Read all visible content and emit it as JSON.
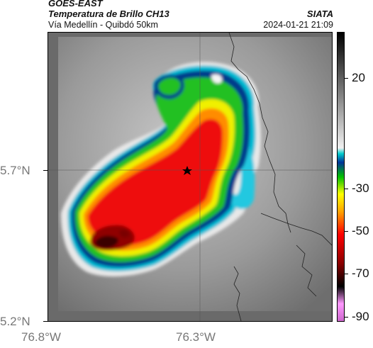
{
  "header": {
    "satellite": "GOES-EAST",
    "product": "Temperatura de Brillo CH13",
    "location": "Vía Medellín - Quibdó 50km",
    "organization": "SIATA",
    "timestamp": "2024-01-21 21:09"
  },
  "map": {
    "lat_ticks": [
      "5.7°N",
      "5.2°N"
    ],
    "lon_ticks": [
      "76.8°W",
      "76.3°W"
    ],
    "marker": "star-icon"
  },
  "colorbar": {
    "ticks": [
      "20",
      "-30",
      "-50",
      "-70",
      "-90"
    ],
    "range": [
      -95,
      40
    ],
    "colors": [
      "#cc66cc",
      "#ff99ff",
      "#000000",
      "#8b0000",
      "#ff0000",
      "#ffa500",
      "#ffff00",
      "#00c000",
      "#003399",
      "#00cccc",
      "#f0f0f0",
      "#000000"
    ]
  }
}
